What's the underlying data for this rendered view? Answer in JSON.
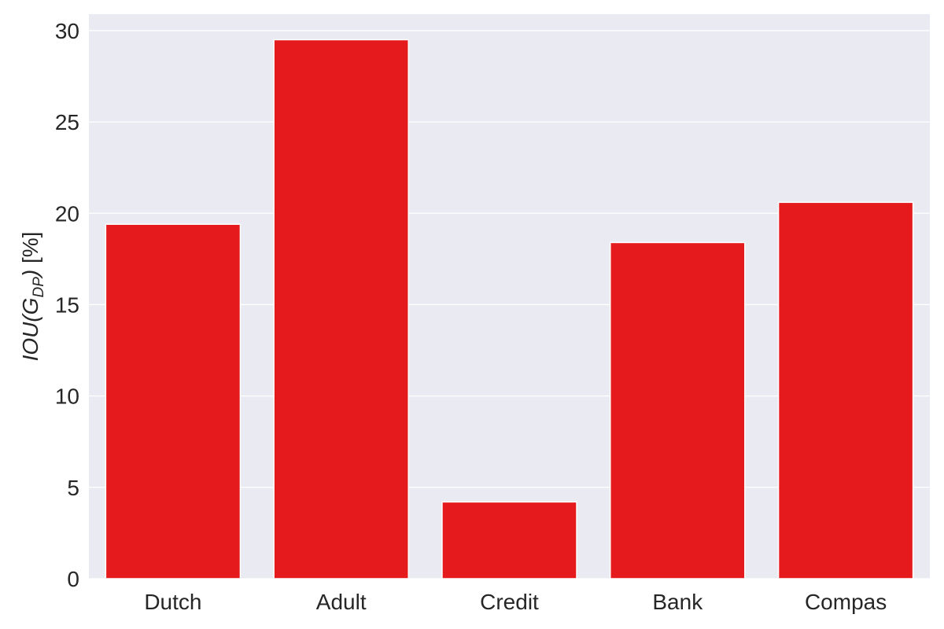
{
  "chart_data": {
    "type": "bar",
    "categories": [
      "Dutch",
      "Adult",
      "Credit",
      "Bank",
      "Compas"
    ],
    "values": [
      19.4,
      29.5,
      4.2,
      18.4,
      20.6
    ],
    "ylabel": {
      "main": "IOU(G",
      "sub": "DP",
      "close": ")",
      "unit": " [%]"
    },
    "ylim": [
      0,
      30.9
    ],
    "yticks": [
      0,
      5,
      10,
      15,
      20,
      25,
      30
    ],
    "grid": true,
    "bar_color": "#e41a1c",
    "background_color": "#eaeaf2",
    "grid_color": "#ffffff"
  }
}
